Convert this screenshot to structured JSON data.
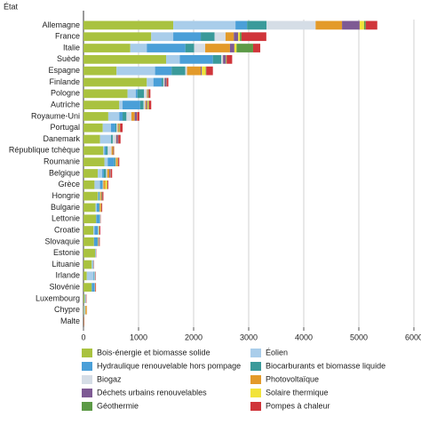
{
  "chart_data": {
    "type": "stacked-barh",
    "y_label": "État",
    "categories": [
      "Allemagne",
      "France",
      "Italie",
      "Suède",
      "Espagne",
      "Finlande",
      "Pologne",
      "Autriche",
      "Royaume-Uni",
      "Portugal",
      "Danemark",
      "République tchèque",
      "Roumanie",
      "Belgique",
      "Grèce",
      "Hongrie",
      "Bulgarie",
      "Lettonie",
      "Croatie",
      "Slovaquie",
      "Estonie",
      "Lituanie",
      "Irlande",
      "Slovénie",
      "Luxembourg",
      "Chypre",
      "Malte"
    ],
    "series": [
      {
        "name": "Bois-énergie et biomasse solide",
        "color": "#a9c23f",
        "values": [
          1630,
          1230,
          850,
          1500,
          600,
          1150,
          800,
          650,
          450,
          350,
          300,
          360,
          380,
          260,
          200,
          260,
          220,
          230,
          180,
          190,
          210,
          150,
          60,
          150,
          20,
          10,
          2
        ]
      },
      {
        "name": "Éolien",
        "color": "#a9cdea",
        "values": [
          1130,
          400,
          300,
          250,
          700,
          120,
          150,
          60,
          200,
          150,
          200,
          20,
          60,
          80,
          100,
          10,
          20,
          2,
          20,
          1,
          10,
          20,
          120,
          1,
          5,
          15,
          1
        ]
      },
      {
        "name": "Hydraulique renouvelable hors pompage",
        "color": "#4a9fd8",
        "values": [
          210,
          500,
          700,
          600,
          300,
          150,
          30,
          320,
          60,
          80,
          1,
          30,
          120,
          30,
          40,
          5,
          40,
          60,
          60,
          60,
          0,
          5,
          10,
          50,
          2,
          0,
          0
        ]
      },
      {
        "name": "Biocarburants et biomasse liquide",
        "color": "#3a9a9a",
        "values": [
          355,
          250,
          160,
          150,
          250,
          30,
          120,
          60,
          70,
          20,
          30,
          30,
          20,
          40,
          10,
          20,
          10,
          10,
          5,
          10,
          5,
          5,
          10,
          5,
          10,
          5,
          1
        ]
      },
      {
        "name": "Biogaz",
        "color": "#d5dde6",
        "values": [
          890,
          200,
          200,
          30,
          30,
          20,
          50,
          30,
          90,
          20,
          60,
          70,
          10,
          20,
          10,
          10,
          5,
          5,
          10,
          5,
          5,
          5,
          10,
          5,
          5,
          5,
          1
        ]
      },
      {
        "name": "Photovoltaïque",
        "color": "#e39a2a",
        "values": [
          480,
          150,
          450,
          5,
          250,
          5,
          10,
          20,
          60,
          20,
          5,
          30,
          30,
          40,
          40,
          20,
          20,
          0,
          5,
          10,
          0,
          2,
          1,
          5,
          3,
          15,
          5
        ]
      },
      {
        "name": "Déchets urbains renouvelables",
        "color": "#7e5a94",
        "values": [
          320,
          80,
          80,
          50,
          20,
          30,
          10,
          20,
          40,
          5,
          30,
          10,
          0,
          20,
          0,
          5,
          0,
          0,
          0,
          5,
          0,
          2,
          5,
          0,
          5,
          0,
          0
        ]
      },
      {
        "name": "Solaire thermique",
        "color": "#f2e33a",
        "values": [
          80,
          30,
          40,
          5,
          70,
          1,
          10,
          20,
          5,
          10,
          2,
          5,
          5,
          5,
          30,
          2,
          5,
          0,
          5,
          0,
          0,
          0,
          1,
          1,
          1,
          10,
          1
        ]
      },
      {
        "name": "Géothermie",
        "color": "#5c9a46",
        "values": [
          30,
          30,
          300,
          10,
          10,
          5,
          5,
          10,
          0,
          10,
          5,
          0,
          5,
          0,
          5,
          10,
          5,
          0,
          5,
          5,
          0,
          0,
          0,
          0,
          0,
          0,
          0
        ]
      },
      {
        "name": "Pompes à chaleur",
        "color": "#d0353a",
        "values": [
          210,
          450,
          130,
          100,
          120,
          30,
          30,
          40,
          40,
          45,
          40,
          5,
          20,
          25,
          15,
          20,
          15,
          5,
          15,
          10,
          5,
          5,
          5,
          10,
          5,
          5,
          5
        ]
      }
    ],
    "xlim": [
      0,
      6000
    ],
    "xticks": [
      0,
      1000,
      2000,
      3000,
      4000,
      5000,
      6000
    ],
    "grid": true,
    "legend_order": [
      0,
      2,
      4,
      6,
      8,
      1,
      3,
      5,
      7,
      9
    ]
  }
}
